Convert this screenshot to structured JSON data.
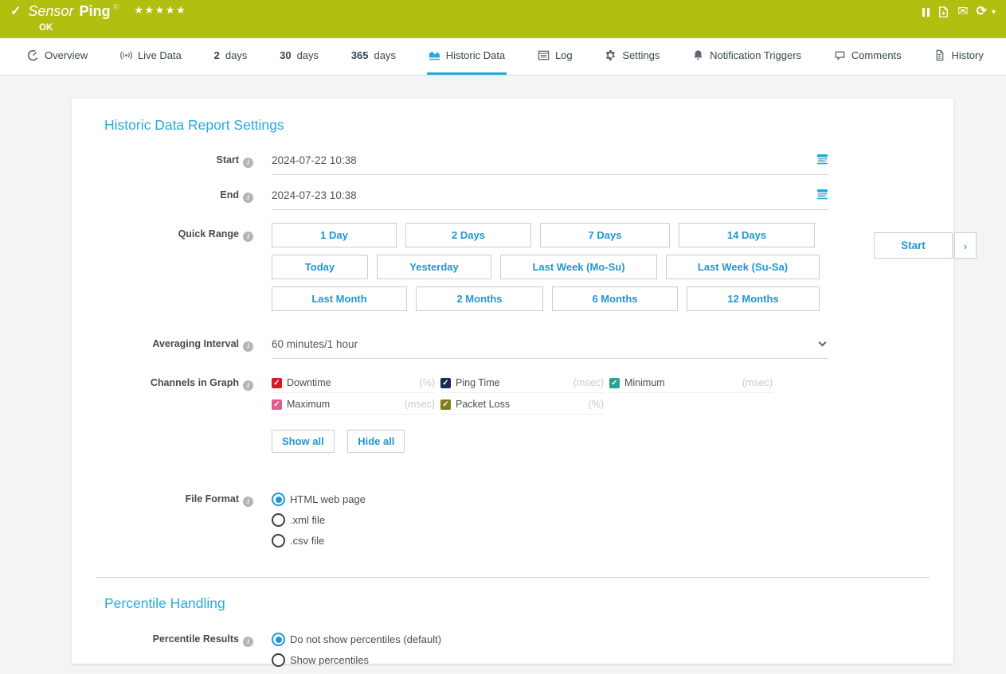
{
  "header": {
    "check_glyph": "✓",
    "title_prefix": "Sensor",
    "title_name": "Ping",
    "flag_glyph": "⚐",
    "stars": "★★★★★",
    "status": "OK",
    "toolbar": [
      "pause-icon",
      "add-report-icon",
      "email-icon",
      "refresh-icon",
      "caret-down-icon"
    ]
  },
  "tabs": [
    {
      "icon": "gauge-icon",
      "label": "Overview"
    },
    {
      "icon": "live-icon",
      "label": "Live Data"
    },
    {
      "bold": "2",
      "label": "days"
    },
    {
      "bold": "30",
      "label": "days"
    },
    {
      "bold": "365",
      "label": "days"
    },
    {
      "icon": "chart-icon",
      "label": "Historic Data",
      "active": true
    },
    {
      "icon": "log-icon",
      "label": "Log"
    },
    {
      "icon": "gear-icon",
      "label": "Settings"
    },
    {
      "icon": "bell-icon",
      "label": "Notification Triggers"
    },
    {
      "icon": "comment-icon",
      "label": "Comments"
    },
    {
      "icon": "history-icon",
      "label": "History"
    }
  ],
  "report": {
    "title": "Historic Data Report Settings",
    "rows": {
      "start": {
        "label": "Start",
        "value": "2024-07-22 10:38"
      },
      "end": {
        "label": "End",
        "value": "2024-07-23 10:38"
      },
      "quick_range": {
        "label": "Quick Range"
      },
      "averaging": {
        "label": "Averaging Interval",
        "value": "60 minutes/1 hour"
      },
      "channels": {
        "label": "Channels in Graph"
      },
      "file_format": {
        "label": "File Format"
      }
    },
    "quick_range_buttons": [
      [
        "1 Day",
        "2 Days",
        "7 Days",
        "14 Days"
      ],
      [
        "Today",
        "Yesterday",
        "Last Week (Mo-Su)",
        "Last Week (Su-Sa)"
      ],
      [
        "Last Month",
        "2 Months",
        "6 Months",
        "12 Months"
      ]
    ],
    "channels": [
      {
        "name": "Downtime",
        "unit": "(%)",
        "color": "#d71920",
        "checked": true
      },
      {
        "name": "Ping Time",
        "unit": "(msec)",
        "color": "#1a2b52",
        "checked": true
      },
      {
        "name": "Minimum",
        "unit": "(msec)",
        "color": "#2aa198",
        "checked": true
      },
      {
        "name": "Maximum",
        "unit": "(msec)",
        "color": "#e25a8c",
        "checked": true
      },
      {
        "name": "Packet Loss",
        "unit": "(%)",
        "color": "#7f7d22",
        "checked": true
      }
    ],
    "channel_buttons": {
      "show_all": "Show all",
      "hide_all": "Hide all"
    },
    "file_formats": [
      {
        "label": "HTML web page",
        "selected": true
      },
      {
        "label": ".xml file",
        "selected": false
      },
      {
        "label": ".csv file",
        "selected": false
      }
    ],
    "start_button": {
      "label": "Start",
      "chevron": "›"
    }
  },
  "percentile": {
    "title": "Percentile Handling",
    "label": "Percentile Results",
    "options": [
      {
        "label": "Do not show percentiles (default)",
        "selected": true
      },
      {
        "label": "Show percentiles",
        "selected": false
      }
    ]
  },
  "colors": {
    "status_green": "#b1bf11",
    "accent_blue": "#29a9e0",
    "link_blue": "#2196d3"
  }
}
